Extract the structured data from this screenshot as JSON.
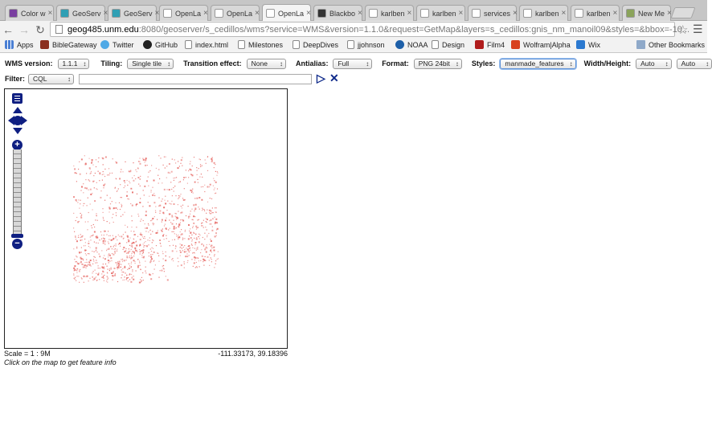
{
  "browser": {
    "tabs": [
      {
        "title": "Color w",
        "color": "#7a3fa0",
        "active": false
      },
      {
        "title": "GeoServ",
        "color": "#2f9fb4",
        "active": false
      },
      {
        "title": "GeoServ",
        "color": "#2f9fb4",
        "active": false
      },
      {
        "title": "OpenLa",
        "color": "#ffffff",
        "active": false
      },
      {
        "title": "OpenLa",
        "color": "#ffffff",
        "active": false
      },
      {
        "title": "OpenLa",
        "color": "#ffffff",
        "active": true
      },
      {
        "title": "Blackbo",
        "color": "#333333",
        "active": false
      },
      {
        "title": "karlben",
        "color": "#ffffff",
        "active": false
      },
      {
        "title": "karlben",
        "color": "#ffffff",
        "active": false
      },
      {
        "title": "services",
        "color": "#ffffff",
        "active": false
      },
      {
        "title": "karlben",
        "color": "#ffffff",
        "active": false
      },
      {
        "title": "karlben",
        "color": "#ffffff",
        "active": false
      },
      {
        "title": "New Me",
        "color": "#8aa35a",
        "active": false
      }
    ],
    "address": {
      "host": "geog485.unm.edu",
      "path": ":8080/geoserver/s_cedillos/wms?service=WMS&version=1.1.0&request=GetMap&layers=s_cedillos:gnis_nm_manoil09&styles=&bbox=-10..."
    },
    "bookmarks": [
      {
        "label": "Apps",
        "icon": "apps-grid-icon"
      },
      {
        "label": "BibleGateway",
        "icon": "biblegateway-icon"
      },
      {
        "label": "Twitter",
        "icon": "twitter-bird-icon"
      },
      {
        "label": "GitHub",
        "icon": "github-icon"
      },
      {
        "label": "index.html",
        "icon": "page-icon"
      },
      {
        "label": "Milestones",
        "icon": "page-icon"
      },
      {
        "label": "DeepDives",
        "icon": "page-icon"
      },
      {
        "label": "jjohnson",
        "icon": "page-icon"
      },
      {
        "label": "NOAA",
        "icon": "noaa-icon"
      },
      {
        "label": "Design",
        "icon": "page-icon"
      },
      {
        "label": "Film4",
        "icon": "film4-icon"
      },
      {
        "label": "Wolfram|Alpha",
        "icon": "wolfram-icon"
      },
      {
        "label": "Wix",
        "icon": "wix-icon"
      },
      {
        "label": "Other Bookmarks",
        "icon": "folder-icon"
      }
    ]
  },
  "controls": {
    "wms_version": {
      "label": "WMS version:",
      "value": "1.1.1"
    },
    "tiling": {
      "label": "Tiling:",
      "value": "Single tile"
    },
    "transition": {
      "label": "Transition effect:",
      "value": "None"
    },
    "antialias": {
      "label": "Antialias:",
      "value": "Full"
    },
    "format": {
      "label": "Format:",
      "value": "PNG 24bit"
    },
    "styles": {
      "label": "Styles:",
      "value": "manmade_features"
    },
    "width_height": {
      "label": "Width/Height:",
      "width": "Auto",
      "height": "Auto"
    },
    "filter": {
      "label": "Filter:",
      "value": "CQL",
      "text": ""
    }
  },
  "map": {
    "point_color": "#e8736f",
    "scale": "Scale = 1 : 9M",
    "coords": "-111.33173, 39.18396",
    "hint": "Click on the map to get feature info"
  }
}
